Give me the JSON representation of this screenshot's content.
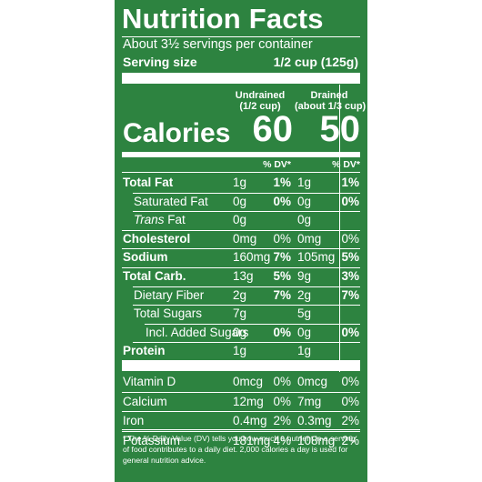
{
  "title": "Nutrition Facts",
  "servings_per_container": "About 3½ servings per container",
  "serving_size_label": "Serving size",
  "serving_size_value": "1/2 cup (125g)",
  "columns": {
    "undrained": {
      "line1": "Undrained",
      "line2": "(1/2 cup)"
    },
    "drained": {
      "line1": "Drained",
      "line2": "(about 1/3 cup)"
    }
  },
  "calories": {
    "label": "Calories",
    "undrained": "60",
    "drained": "50"
  },
  "dv_header": "% DV*",
  "nutrients": [
    {
      "label": "Total Fat",
      "bold": true,
      "indent": 0,
      "u_amt": "1g",
      "u_pct": "1%",
      "d_amt": "1g",
      "d_pct": "1%",
      "pct_bold": true
    },
    {
      "label": "Saturated Fat",
      "bold": false,
      "indent": 1,
      "u_amt": "0g",
      "u_pct": "0%",
      "d_amt": "0g",
      "d_pct": "0%",
      "pct_bold": true
    },
    {
      "label": "Trans Fat",
      "bold": false,
      "indent": 1,
      "italic_word": "Trans",
      "rest": " Fat",
      "u_amt": "0g",
      "u_pct": "",
      "d_amt": "0g",
      "d_pct": "",
      "pct_bold": false
    },
    {
      "label": "Cholesterol",
      "bold": true,
      "indent": 0,
      "u_amt": "0mg",
      "u_pct": "0%",
      "d_amt": "0mg",
      "d_pct": "0%",
      "pct_bold": false
    },
    {
      "label": "Sodium",
      "bold": true,
      "indent": 0,
      "u_amt": "160mg",
      "u_pct": "7%",
      "d_amt": "105mg",
      "d_pct": "5%",
      "pct_bold": true
    },
    {
      "label": "Total Carb.",
      "bold": true,
      "indent": 0,
      "u_amt": "13g",
      "u_pct": "5%",
      "d_amt": "9g",
      "d_pct": "3%",
      "pct_bold": true
    },
    {
      "label": "Dietary Fiber",
      "bold": false,
      "indent": 1,
      "u_amt": "2g",
      "u_pct": "7%",
      "d_amt": "2g",
      "d_pct": "7%",
      "pct_bold": true
    },
    {
      "label": "Total Sugars",
      "bold": false,
      "indent": 1,
      "u_amt": "7g",
      "u_pct": "",
      "d_amt": "5g",
      "d_pct": "",
      "pct_bold": false
    },
    {
      "label": "Incl. Added Sugars",
      "bold": false,
      "indent": 2,
      "u_amt": "0g",
      "u_pct": "0%",
      "d_amt": "0g",
      "d_pct": "0%",
      "pct_bold": true
    },
    {
      "label": "Protein",
      "bold": true,
      "indent": 0,
      "u_amt": "1g",
      "u_pct": "",
      "d_amt": "1g",
      "d_pct": "",
      "pct_bold": false
    }
  ],
  "vitamins": [
    {
      "label": "Vitamin D",
      "u_amt": "0mcg",
      "u_pct": "0%",
      "d_amt": "0mcg",
      "d_pct": "0%"
    },
    {
      "label": "Calcium",
      "u_amt": "12mg",
      "u_pct": "0%",
      "d_amt": "7mg",
      "d_pct": "0%"
    },
    {
      "label": "Iron",
      "u_amt": "0.4mg",
      "u_pct": "2%",
      "d_amt": "0.3mg",
      "d_pct": "2%"
    },
    {
      "label": "Potassium",
      "u_amt": "181mg",
      "u_pct": "4%",
      "d_amt": "108mg",
      "d_pct": "2%"
    }
  ],
  "footnote": "* The % Daily Value (DV) tells you how much a nutrient in a serving of food contributes to a daily diet. 2,000 calories a day is used for general nutrition advice.",
  "colors": {
    "panel_green": "#2d8340",
    "text": "#ffffff"
  }
}
